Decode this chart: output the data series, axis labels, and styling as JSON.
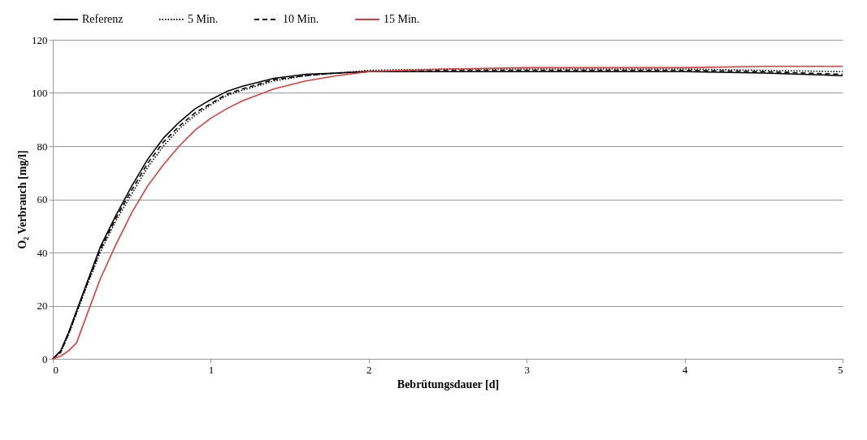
{
  "chart_data": {
    "type": "line",
    "xlabel": "Bebrütungsdauer  [d]",
    "ylabel": "O₂ Verbrauch [mg/l]",
    "x": [
      0,
      0.05,
      0.1,
      0.15,
      0.2,
      0.3,
      0.4,
      0.5,
      0.6,
      0.7,
      0.8,
      0.9,
      1,
      1.1,
      1.2,
      1.4,
      1.6,
      1.8,
      2,
      2.5,
      3,
      3.5,
      4,
      4.5,
      5
    ],
    "series": [
      {
        "name": "Referenz",
        "color": "#000000",
        "line_style": "solid",
        "values": [
          0,
          3,
          10,
          18,
          26,
          42,
          54,
          65,
          75,
          83,
          89,
          94,
          97.5,
          100.5,
          102.5,
          105.5,
          107,
          107.5,
          108,
          108,
          108,
          108,
          108,
          107.5,
          106.5
        ]
      },
      {
        "name": "5 Min.",
        "color": "#000000",
        "line_style": "dotted",
        "values": [
          0,
          2.5,
          9,
          17,
          25,
          40,
          52,
          62,
          72,
          80,
          86.5,
          91.5,
          95.5,
          99,
          101,
          104.5,
          106.5,
          107.5,
          108.5,
          109,
          109,
          109,
          109,
          108.5,
          108
        ]
      },
      {
        "name": "10 Min.",
        "color": "#000000",
        "line_style": "dashed",
        "values": [
          0,
          2.5,
          9.5,
          17.5,
          25.5,
          41,
          53,
          63.5,
          73.5,
          81.5,
          87.5,
          92.5,
          96,
          99.5,
          101.5,
          105,
          106.5,
          107.5,
          108,
          108.5,
          108.5,
          108.5,
          108.5,
          108,
          107
        ]
      },
      {
        "name": "15 Min.",
        "color": "#e03c3c",
        "line_style": "solid",
        "values": [
          0,
          1,
          3,
          6,
          14,
          30,
          43,
          55,
          65,
          73,
          80,
          86,
          90.5,
          94,
          97,
          101.5,
          104.5,
          106.5,
          108,
          109,
          109.5,
          109.5,
          109.5,
          110,
          110
        ]
      }
    ],
    "xlim": [
      0,
      5
    ],
    "xticks": [
      0,
      1,
      2,
      3,
      4,
      5
    ],
    "ylim": [
      0,
      120
    ],
    "yticks": [
      0,
      20,
      40,
      60,
      80,
      100,
      120
    ],
    "grid": "y",
    "legend": "top"
  }
}
